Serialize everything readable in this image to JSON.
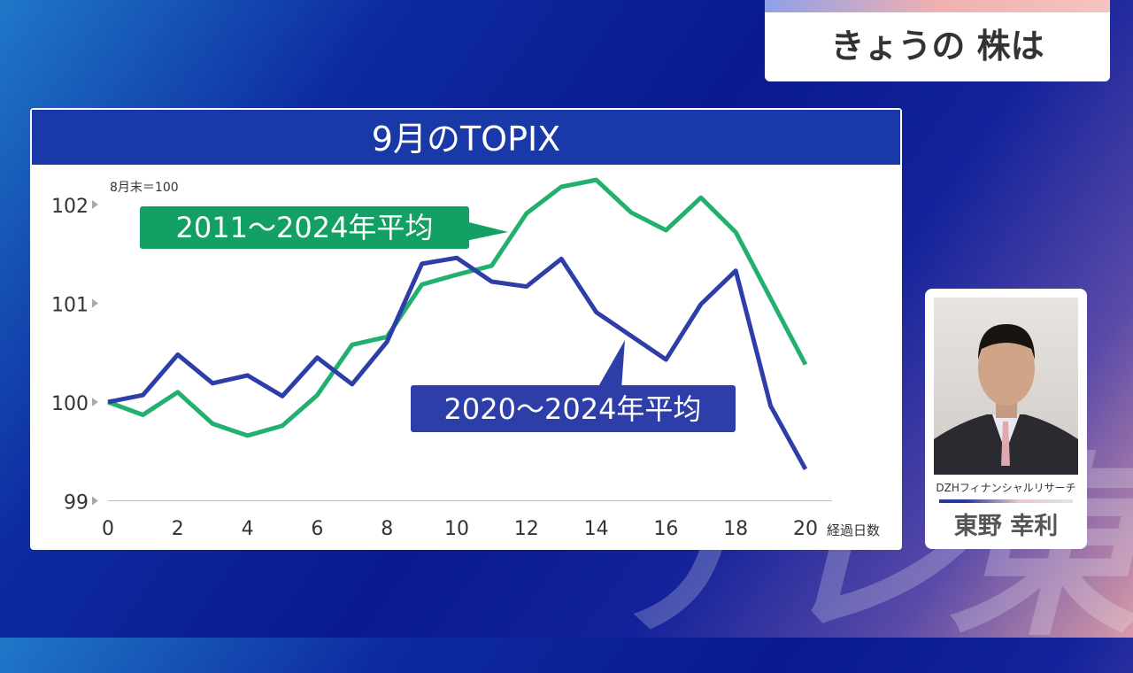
{
  "program_title": "きょうの 株は",
  "watermark": "テレ東",
  "guest": {
    "organization": "DZHフィナンシャルリサーチ",
    "name": "東野 幸利"
  },
  "chart_data": {
    "type": "line",
    "title": "9月のTOPIX",
    "note": "8月末＝100",
    "xlabel": "経過日数",
    "ylabel": "",
    "xlim": [
      0,
      20
    ],
    "ylim": [
      99,
      102
    ],
    "x_ticks": [
      "0",
      "2",
      "4",
      "6",
      "8",
      "10",
      "12",
      "14",
      "16",
      "18",
      "20"
    ],
    "y_ticks": [
      "99",
      "100",
      "101",
      "102"
    ],
    "x": [
      0,
      1,
      2,
      3,
      4,
      5,
      6,
      7,
      8,
      9,
      10,
      11,
      12,
      13,
      14,
      15,
      16,
      17,
      18,
      19,
      20
    ],
    "series": [
      {
        "name": "2011〜2024年平均",
        "color": "#22b06e",
        "label_bg": "#12a065",
        "values": [
          100,
          99.87,
          100.1,
          99.78,
          99.66,
          99.76,
          100.07,
          100.58,
          100.66,
          101.19,
          101.29,
          101.38,
          101.91,
          102.18,
          102.25,
          101.92,
          101.74,
          102.07,
          101.72,
          101.05,
          100.38
        ]
      },
      {
        "name": "2020〜2024年平均",
        "color": "#2e3ea8",
        "label_bg": "#2e3ea8",
        "values": [
          100,
          100.07,
          100.48,
          100.19,
          100.27,
          100.06,
          100.45,
          100.18,
          100.61,
          101.4,
          101.46,
          101.22,
          101.17,
          101.45,
          100.91,
          100.67,
          100.43,
          100.99,
          101.33,
          99.96,
          99.32
        ]
      }
    ]
  }
}
